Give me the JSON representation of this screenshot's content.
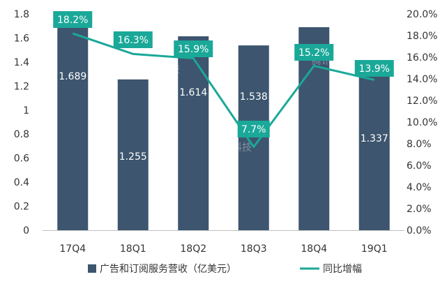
{
  "chart_data": {
    "type": "bar",
    "categories": [
      "17Q4",
      "18Q1",
      "18Q2",
      "18Q3",
      "18Q4",
      "19Q1"
    ],
    "series": [
      {
        "name": "广告和订阅服务营收（亿美元）",
        "type": "bar",
        "axis": "left",
        "values": [
          1.689,
          1.255,
          1.614,
          1.538,
          1.69,
          1.337
        ],
        "labels": [
          "1.689",
          "1.255",
          "1.614",
          "1.538",
          "",
          "1.337"
        ],
        "color": "#3d556e"
      },
      {
        "name": "同比增幅",
        "type": "line",
        "axis": "right",
        "values": [
          18.2,
          16.3,
          15.9,
          7.7,
          15.2,
          13.9
        ],
        "labels": [
          "18.2%",
          "16.3%",
          "15.9%",
          "7.7%",
          "15.2%",
          "13.9%"
        ],
        "color": "#1aa898"
      }
    ],
    "y_left": {
      "ylim": [
        0,
        1.8
      ],
      "ticks": [
        "0",
        "0.2",
        "0.4",
        "0.6",
        "0.8",
        "1",
        "1.2",
        "1.4",
        "1.6",
        "1.8"
      ]
    },
    "y_right": {
      "ylim": [
        0,
        20
      ],
      "ticks": [
        "0.0%",
        "2.0%",
        "4.0%",
        "6.0%",
        "8.0%",
        "10.0%",
        "12.0%",
        "14.0%",
        "16.0%",
        "18.0%",
        "20.0%"
      ]
    },
    "grid": false,
    "legend": "bottom",
    "watermark": "腾讯科技"
  }
}
